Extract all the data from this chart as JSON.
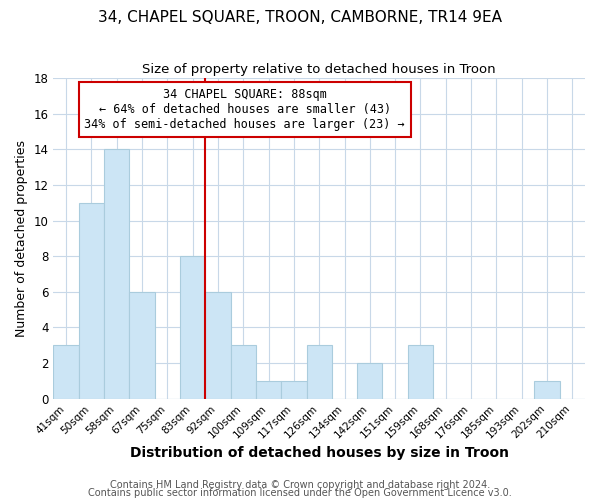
{
  "title": "34, CHAPEL SQUARE, TROON, CAMBORNE, TR14 9EA",
  "subtitle": "Size of property relative to detached houses in Troon",
  "xlabel": "Distribution of detached houses by size in Troon",
  "ylabel": "Number of detached properties",
  "bar_labels": [
    "41sqm",
    "50sqm",
    "58sqm",
    "67sqm",
    "75sqm",
    "83sqm",
    "92sqm",
    "100sqm",
    "109sqm",
    "117sqm",
    "126sqm",
    "134sqm",
    "142sqm",
    "151sqm",
    "159sqm",
    "168sqm",
    "176sqm",
    "185sqm",
    "193sqm",
    "202sqm",
    "210sqm"
  ],
  "bar_values": [
    3,
    11,
    14,
    6,
    0,
    8,
    6,
    3,
    1,
    1,
    3,
    0,
    2,
    0,
    3,
    0,
    0,
    0,
    0,
    1,
    0
  ],
  "bar_color": "#cce5f5",
  "bar_edge_color": "#aaccdd",
  "vline_color": "#cc0000",
  "annotation_box_text": "34 CHAPEL SQUARE: 88sqm\n← 64% of detached houses are smaller (43)\n34% of semi-detached houses are larger (23) →",
  "ylim": [
    0,
    18
  ],
  "yticks": [
    0,
    2,
    4,
    6,
    8,
    10,
    12,
    14,
    16,
    18
  ],
  "footnote1": "Contains HM Land Registry data © Crown copyright and database right 2024.",
  "footnote2": "Contains public sector information licensed under the Open Government Licence v3.0.",
  "title_fontsize": 11,
  "subtitle_fontsize": 9.5,
  "xlabel_fontsize": 10,
  "ylabel_fontsize": 9,
  "annotation_fontsize": 8.5,
  "footnote_fontsize": 7,
  "background_color": "#ffffff",
  "grid_color": "#c8d8e8"
}
